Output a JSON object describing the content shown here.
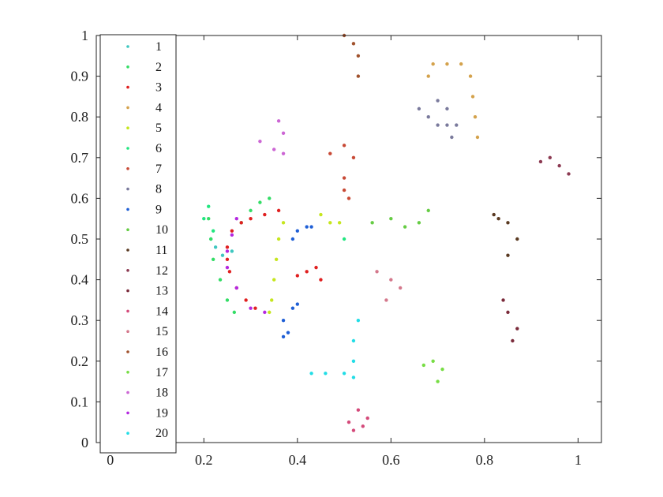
{
  "chart_data": {
    "type": "scatter",
    "title": "",
    "xlabel": "",
    "ylabel": "",
    "xlim": [
      -0.03,
      1.05
    ],
    "ylim": [
      0,
      1
    ],
    "grid": false,
    "legend_placement": "left-inside",
    "x_ticks": [
      {
        "value": 0,
        "label": "0"
      },
      {
        "value": 0.2,
        "label": "0.2"
      },
      {
        "value": 0.4,
        "label": "0.4"
      },
      {
        "value": 0.6,
        "label": "0.6"
      },
      {
        "value": 0.8,
        "label": "0.8"
      },
      {
        "value": 1,
        "label": "1"
      }
    ],
    "y_ticks": [
      {
        "value": 0,
        "label": "0"
      },
      {
        "value": 0.1,
        "label": "0.1"
      },
      {
        "value": 0.2,
        "label": "0.2"
      },
      {
        "value": 0.3,
        "label": "0.3"
      },
      {
        "value": 0.4,
        "label": "0.4"
      },
      {
        "value": 0.5,
        "label": "0.5"
      },
      {
        "value": 0.6,
        "label": "0.6"
      },
      {
        "value": 0.7,
        "label": "0.7"
      },
      {
        "value": 0.8,
        "label": "0.8"
      },
      {
        "value": 0.9,
        "label": "0.9"
      },
      {
        "value": 1,
        "label": "1"
      }
    ],
    "series": [
      {
        "name": "1",
        "color": "#3fc7c0",
        "points": [
          [
            0.215,
            0.5
          ],
          [
            0.225,
            0.48
          ],
          [
            0.24,
            0.46
          ],
          [
            0.26,
            0.47
          ]
        ]
      },
      {
        "name": "2",
        "color": "#33dd66",
        "points": [
          [
            0.21,
            0.55
          ],
          [
            0.215,
            0.5
          ],
          [
            0.22,
            0.45
          ],
          [
            0.235,
            0.4
          ],
          [
            0.25,
            0.35
          ],
          [
            0.265,
            0.32
          ],
          [
            0.28,
            0.54
          ],
          [
            0.3,
            0.57
          ],
          [
            0.32,
            0.59
          ],
          [
            0.34,
            0.6
          ]
        ]
      },
      {
        "name": "3",
        "color": "#e02020",
        "points": [
          [
            0.26,
            0.52
          ],
          [
            0.25,
            0.48
          ],
          [
            0.25,
            0.45
          ],
          [
            0.255,
            0.42
          ],
          [
            0.27,
            0.38
          ],
          [
            0.29,
            0.35
          ],
          [
            0.31,
            0.33
          ],
          [
            0.28,
            0.54
          ],
          [
            0.3,
            0.55
          ],
          [
            0.33,
            0.56
          ],
          [
            0.36,
            0.57
          ],
          [
            0.4,
            0.41
          ],
          [
            0.42,
            0.42
          ],
          [
            0.44,
            0.43
          ],
          [
            0.45,
            0.4
          ]
        ]
      },
      {
        "name": "4",
        "color": "#d4a24c",
        "points": [
          [
            0.68,
            0.9
          ],
          [
            0.69,
            0.93
          ],
          [
            0.72,
            0.93
          ],
          [
            0.75,
            0.93
          ],
          [
            0.77,
            0.9
          ],
          [
            0.775,
            0.85
          ],
          [
            0.78,
            0.8
          ],
          [
            0.785,
            0.75
          ]
        ]
      },
      {
        "name": "5",
        "color": "#c6e61e",
        "points": [
          [
            0.34,
            0.32
          ],
          [
            0.345,
            0.35
          ],
          [
            0.35,
            0.4
          ],
          [
            0.355,
            0.45
          ],
          [
            0.36,
            0.5
          ],
          [
            0.37,
            0.54
          ],
          [
            0.45,
            0.56
          ],
          [
            0.47,
            0.54
          ],
          [
            0.49,
            0.54
          ]
        ]
      },
      {
        "name": "6",
        "color": "#22e680",
        "points": [
          [
            0.2,
            0.55
          ],
          [
            0.21,
            0.58
          ],
          [
            0.22,
            0.52
          ],
          [
            0.5,
            0.5
          ]
        ]
      },
      {
        "name": "7",
        "color": "#c84a36",
        "points": [
          [
            0.47,
            0.71
          ],
          [
            0.5,
            0.73
          ],
          [
            0.52,
            0.7
          ],
          [
            0.5,
            0.65
          ],
          [
            0.51,
            0.6
          ],
          [
            0.5,
            0.62
          ]
        ]
      },
      {
        "name": "8",
        "color": "#7a7a9c",
        "points": [
          [
            0.66,
            0.82
          ],
          [
            0.68,
            0.8
          ],
          [
            0.7,
            0.84
          ],
          [
            0.72,
            0.82
          ],
          [
            0.7,
            0.78
          ],
          [
            0.72,
            0.78
          ],
          [
            0.74,
            0.78
          ],
          [
            0.73,
            0.75
          ]
        ]
      },
      {
        "name": "9",
        "color": "#1f5fd6",
        "points": [
          [
            0.38,
            0.27
          ],
          [
            0.37,
            0.3
          ],
          [
            0.39,
            0.33
          ],
          [
            0.4,
            0.34
          ],
          [
            0.37,
            0.26
          ],
          [
            0.39,
            0.5
          ],
          [
            0.4,
            0.52
          ],
          [
            0.42,
            0.53
          ],
          [
            0.43,
            0.53
          ]
        ]
      },
      {
        "name": "10",
        "color": "#66cc44",
        "points": [
          [
            0.6,
            0.55
          ],
          [
            0.63,
            0.53
          ],
          [
            0.66,
            0.54
          ],
          [
            0.68,
            0.57
          ],
          [
            0.56,
            0.54
          ]
        ]
      },
      {
        "name": "11",
        "color": "#5a3a22",
        "points": [
          [
            0.82,
            0.56
          ],
          [
            0.83,
            0.55
          ],
          [
            0.85,
            0.54
          ],
          [
            0.87,
            0.5
          ],
          [
            0.85,
            0.46
          ]
        ]
      },
      {
        "name": "12",
        "color": "#8c3a52",
        "points": [
          [
            0.92,
            0.69
          ],
          [
            0.94,
            0.7
          ],
          [
            0.96,
            0.68
          ],
          [
            0.98,
            0.66
          ]
        ]
      },
      {
        "name": "13",
        "color": "#7a2a3a",
        "points": [
          [
            0.84,
            0.35
          ],
          [
            0.85,
            0.32
          ],
          [
            0.87,
            0.28
          ],
          [
            0.86,
            0.25
          ]
        ]
      },
      {
        "name": "14",
        "color": "#d44a7a",
        "points": [
          [
            0.51,
            0.05
          ],
          [
            0.52,
            0.03
          ],
          [
            0.54,
            0.04
          ],
          [
            0.55,
            0.06
          ],
          [
            0.53,
            0.08
          ]
        ]
      },
      {
        "name": "15",
        "color": "#d4788c",
        "points": [
          [
            0.57,
            0.42
          ],
          [
            0.6,
            0.4
          ],
          [
            0.62,
            0.38
          ],
          [
            0.59,
            0.35
          ]
        ]
      },
      {
        "name": "16",
        "color": "#a0522d",
        "points": [
          [
            0.5,
            1.0
          ],
          [
            0.52,
            0.98
          ],
          [
            0.53,
            0.95
          ],
          [
            0.53,
            0.9
          ]
        ]
      },
      {
        "name": "17",
        "color": "#77dd44",
        "points": [
          [
            0.67,
            0.19
          ],
          [
            0.69,
            0.2
          ],
          [
            0.71,
            0.18
          ],
          [
            0.7,
            0.15
          ]
        ]
      },
      {
        "name": "18",
        "color": "#cc66d4",
        "points": [
          [
            0.32,
            0.74
          ],
          [
            0.35,
            0.72
          ],
          [
            0.37,
            0.71
          ],
          [
            0.37,
            0.76
          ],
          [
            0.36,
            0.79
          ]
        ]
      },
      {
        "name": "19",
        "color": "#b428e0",
        "points": [
          [
            0.27,
            0.55
          ],
          [
            0.26,
            0.51
          ],
          [
            0.25,
            0.47
          ],
          [
            0.25,
            0.43
          ],
          [
            0.27,
            0.38
          ],
          [
            0.3,
            0.33
          ],
          [
            0.33,
            0.32
          ]
        ]
      },
      {
        "name": "20",
        "color": "#22dde6",
        "points": [
          [
            0.43,
            0.17
          ],
          [
            0.46,
            0.17
          ],
          [
            0.5,
            0.17
          ],
          [
            0.52,
            0.2
          ],
          [
            0.52,
            0.25
          ],
          [
            0.53,
            0.3
          ],
          [
            0.52,
            0.16
          ]
        ]
      }
    ]
  }
}
